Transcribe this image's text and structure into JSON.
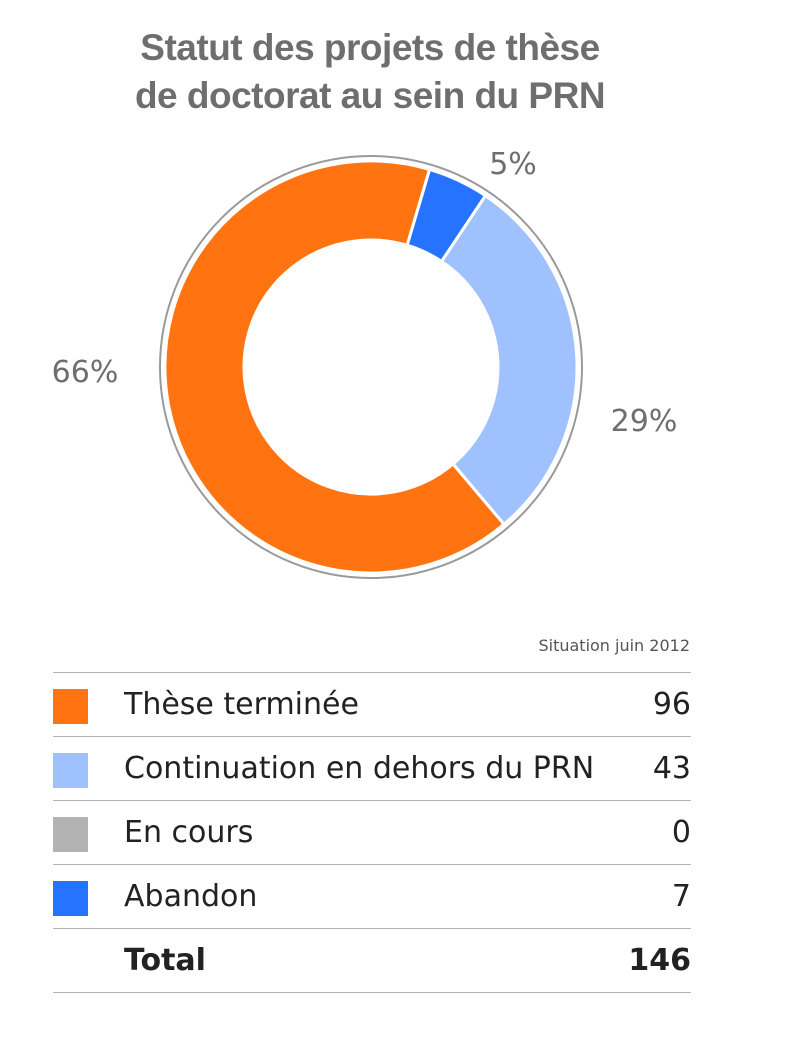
{
  "chart_data": {
    "type": "pie",
    "title": "Statut des projets de thèse de doctorat au sein du PRN",
    "title_lines": [
      "Statut des projets de thèse",
      "de doctorat au sein du PRN"
    ],
    "subtitle": "Situation juin 2012",
    "categories": [
      "Thèse terminée",
      "Continuation en dehors du PRN",
      "En cours",
      "Abandon"
    ],
    "values": [
      96,
      43,
      0,
      7
    ],
    "percent_labels": [
      "66%",
      "29%",
      "",
      "5%"
    ],
    "colors": [
      "#ff7410",
      "#9fc2ff",
      "#b3b3b3",
      "#2673ff"
    ],
    "total_label": "Total",
    "total_value": 146,
    "legend_placement": "bottom"
  }
}
